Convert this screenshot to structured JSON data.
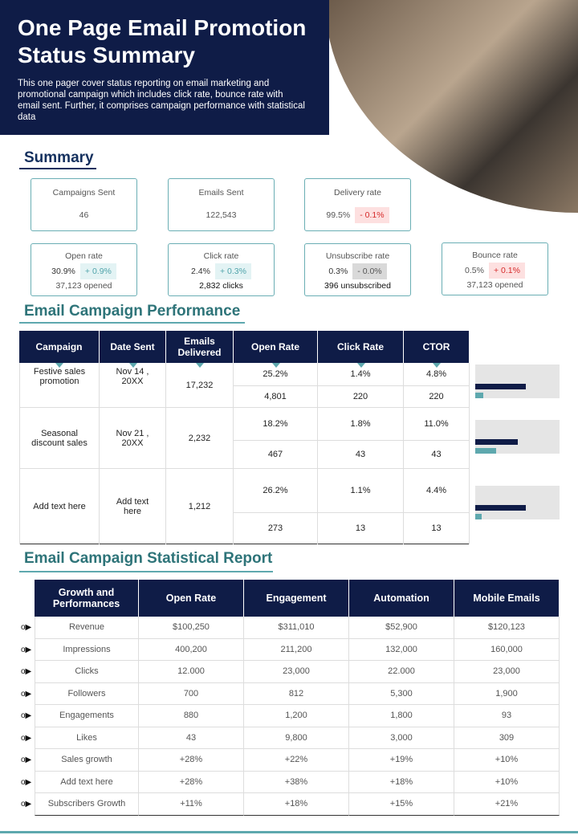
{
  "header": {
    "title": "One Page Email Promotion Status Summary",
    "description": "This one pager cover status reporting on email marketing and promotional campaign which includes click rate, bounce rate with email sent. Further, it comprises campaign performance with statistical data"
  },
  "summary": {
    "heading": "Summary",
    "cards": [
      {
        "label": "Campaigns Sent",
        "value": "46"
      },
      {
        "label": "Emails  Sent",
        "value": "122,543"
      },
      {
        "label": "Delivery rate",
        "value": "99.5%",
        "change": "- 0.1%"
      },
      {
        "label": "Open rate",
        "value": "30.9%",
        "change": "+ 0.9%",
        "note": "37,123 opened"
      },
      {
        "label": "Click rate",
        "value": "2.4%",
        "change": "+ 0.3%",
        "note": "2,832 clicks"
      },
      {
        "label": "Unsubscribe rate",
        "value": "0.3%",
        "change": "- 0.0%",
        "note": "396 unsubscribed"
      },
      {
        "label": "Bounce rate",
        "value": "0.5%",
        "change": "+ 0.1%",
        "note": "37,123 opened"
      }
    ]
  },
  "performance": {
    "heading": "Email Campaign Performance",
    "columns": [
      "Campaign",
      "Date Sent",
      "Emails Delivered",
      "Open Rate",
      "Click Rate",
      "CTOR"
    ],
    "rows": [
      {
        "campaign": "Festive sales promotion",
        "date": "Nov 14 , 20XX",
        "delivered": "17,232",
        "rates": [
          "25.2%",
          "1.4%",
          "4.8%"
        ],
        "counts": [
          "4,801",
          "220",
          "220"
        ]
      },
      {
        "campaign": "Seasonal discount sales",
        "date": "Nov 21 , 20XX",
        "delivered": "2,232",
        "rates": [
          "18.2%",
          "1.8%",
          "11.0%"
        ],
        "counts": [
          "467",
          "43",
          "43"
        ]
      },
      {
        "campaign": "Add text here",
        "date": "Add text here",
        "delivered": "1,212",
        "rates": [
          "26.2%",
          "1.1%",
          "4.4%"
        ],
        "counts": [
          "273",
          "13",
          "13"
        ]
      }
    ]
  },
  "statistics": {
    "heading": "Email Campaign Statistical Report",
    "columns": [
      "Growth and Performances",
      "Open Rate",
      "Engagement",
      "Automation",
      "Mobile Emails"
    ],
    "rows": [
      [
        "Revenue",
        "$100,250",
        "$311,010",
        "$52,900",
        "$120,123"
      ],
      [
        "Impressions",
        "400,200",
        "211,200",
        "132,000",
        "160,000"
      ],
      [
        "Clicks",
        "12.000",
        "23,000",
        "22.000",
        "23,000"
      ],
      [
        "Followers",
        "700",
        "812",
        "5,300",
        "1,900"
      ],
      [
        "Engagements",
        "880",
        "1,200",
        "1,800",
        "93"
      ],
      [
        "Likes",
        "43",
        "9,800",
        "3,000",
        "309"
      ],
      [
        "Sales growth",
        "+28%",
        "+22%",
        "+19%",
        "+10%"
      ],
      [
        "Add text here",
        "+28%",
        "+38%",
        "+18%",
        "+10%"
      ],
      [
        "Subscribers Growth",
        "+11%",
        "+18%",
        "+15%",
        "+21%"
      ]
    ]
  }
}
